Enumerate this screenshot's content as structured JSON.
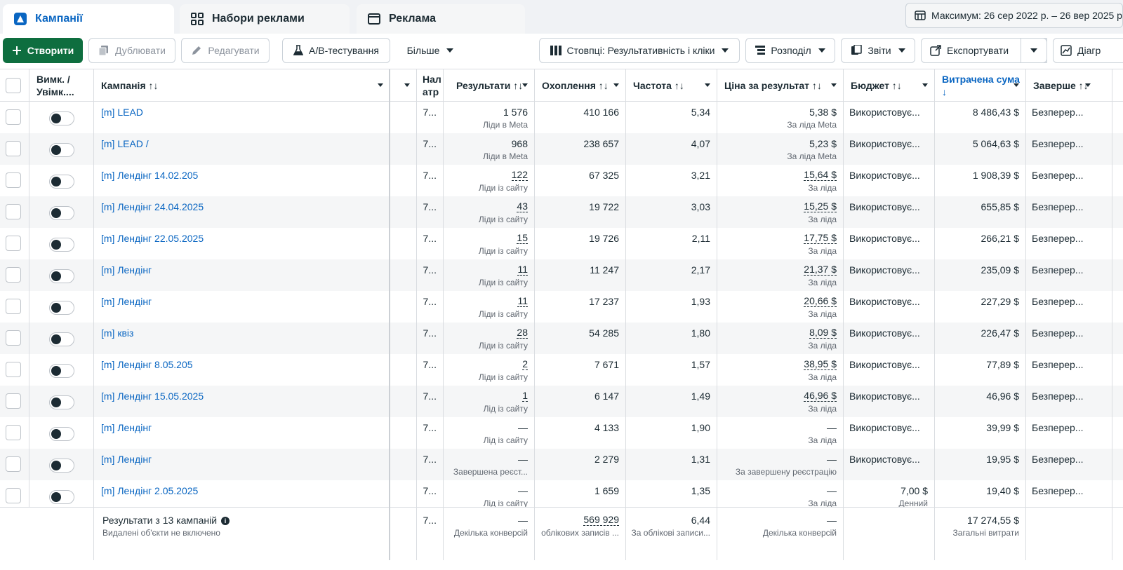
{
  "tabs": [
    {
      "label": "Кампанії",
      "icon": "campaign-flag-icon",
      "active": true
    },
    {
      "label": "Набори реклами",
      "icon": "grid-icon",
      "active": false
    },
    {
      "label": "Реклама",
      "icon": "window-icon",
      "active": false
    }
  ],
  "date_range": "Максимум: 26 сер 2022 р. – 26 вер 2025 р.",
  "toolbar": {
    "create": "Створити",
    "duplicate": "Дублювати",
    "edit": "Редагувати",
    "ab_test": "A/B-тестування",
    "more": "Більше",
    "columns": "Стовпці: Результативність і кліки",
    "breakdown": "Розподіл",
    "reports": "Звіти",
    "export": "Експортувати",
    "charts": "Діагр"
  },
  "headers": {
    "toggle": "Вимк. / Увімк....",
    "campaign": "Кампанія ↑↓",
    "attribution": "Нал атр",
    "results": "Результати ↑↓",
    "reach": "Охоплення ↑↓",
    "frequency": "Частота ↑↓",
    "cost_per_result": "Ціна за результат ↑↓",
    "budget": "Бюджет ↑↓",
    "amount_spent": "Витрачена сума ↓",
    "ends": "Заверше ↑↓"
  },
  "rows": [
    {
      "name": "[m] LEAD",
      "attr": "7...",
      "results": "1 576",
      "results_sub": "Ліди в Meta",
      "results_dotted": false,
      "reach": "410 166",
      "frequency": "5,34",
      "cpr": "5,38 $",
      "cpr_sub": "За ліда Meta",
      "cpr_dotted": false,
      "budget": "Використовує...",
      "budget_sub": "",
      "spent": "8 486,43 $",
      "ends": "Безперер..."
    },
    {
      "name": "[m] LEAD /",
      "attr": "7...",
      "results": "968",
      "results_sub": "Ліди в Meta",
      "results_dotted": false,
      "reach": "238 657",
      "frequency": "4,07",
      "cpr": "5,23 $",
      "cpr_sub": "За ліда Meta",
      "cpr_dotted": false,
      "budget": "Використовує...",
      "budget_sub": "",
      "spent": "5 064,63 $",
      "ends": "Безперер..."
    },
    {
      "name": "[m] Лендінг 14.02.205",
      "attr": "7...",
      "results": "122",
      "results_sub": "Ліди із сайту",
      "results_dotted": true,
      "reach": "67 325",
      "frequency": "3,21",
      "cpr": "15,64 $",
      "cpr_sub": "За ліда",
      "cpr_dotted": true,
      "budget": "Використовує...",
      "budget_sub": "",
      "spent": "1 908,39 $",
      "ends": "Безперер..."
    },
    {
      "name": "[m] Лендінг 24.04.2025",
      "attr": "7...",
      "results": "43",
      "results_sub": "Ліди із сайту",
      "results_dotted": true,
      "reach": "19 722",
      "frequency": "3,03",
      "cpr": "15,25 $",
      "cpr_sub": "За ліда",
      "cpr_dotted": true,
      "budget": "Використовує...",
      "budget_sub": "",
      "spent": "655,85 $",
      "ends": "Безперер..."
    },
    {
      "name": "[m] Лендінг 22.05.2025",
      "attr": "7...",
      "results": "15",
      "results_sub": "Ліди із сайту",
      "results_dotted": true,
      "reach": "19 726",
      "frequency": "2,11",
      "cpr": "17,75 $",
      "cpr_sub": "За ліда",
      "cpr_dotted": true,
      "budget": "Використовує...",
      "budget_sub": "",
      "spent": "266,21 $",
      "ends": "Безперер..."
    },
    {
      "name": "[m] Лендінг",
      "attr": "7...",
      "results": "11",
      "results_sub": "Ліди із сайту",
      "results_dotted": true,
      "reach": "11 247",
      "frequency": "2,17",
      "cpr": "21,37 $",
      "cpr_sub": "За ліда",
      "cpr_dotted": true,
      "budget": "Використовує...",
      "budget_sub": "",
      "spent": "235,09 $",
      "ends": "Безперер..."
    },
    {
      "name": "[m] Лендінг",
      "attr": "7...",
      "results": "11",
      "results_sub": "Ліди із сайту",
      "results_dotted": true,
      "reach": "17 237",
      "frequency": "1,93",
      "cpr": "20,66 $",
      "cpr_sub": "За ліда",
      "cpr_dotted": true,
      "budget": "Використовує...",
      "budget_sub": "",
      "spent": "227,29 $",
      "ends": "Безперер..."
    },
    {
      "name": "[m] квіз",
      "attr": "7...",
      "results": "28",
      "results_sub": "Ліди із сайту",
      "results_dotted": true,
      "reach": "54 285",
      "frequency": "1,80",
      "cpr": "8,09 $",
      "cpr_sub": "За ліда",
      "cpr_dotted": true,
      "budget": "Використовує...",
      "budget_sub": "",
      "spent": "226,47 $",
      "ends": "Безперер..."
    },
    {
      "name": "[m] Лендінг 8.05.205",
      "attr": "7...",
      "results": "2",
      "results_sub": "Ліди із сайту",
      "results_dotted": true,
      "reach": "7 671",
      "frequency": "1,57",
      "cpr": "38,95 $",
      "cpr_sub": "За ліда",
      "cpr_dotted": true,
      "budget": "Використовує...",
      "budget_sub": "",
      "spent": "77,89 $",
      "ends": "Безперер..."
    },
    {
      "name": "[m] Лендінг 15.05.2025",
      "attr": "7...",
      "results": "1",
      "results_sub": "Лід із сайту",
      "results_dotted": true,
      "reach": "6 147",
      "frequency": "1,49",
      "cpr": "46,96 $",
      "cpr_sub": "За ліда",
      "cpr_dotted": true,
      "budget": "Використовує...",
      "budget_sub": "",
      "spent": "46,96 $",
      "ends": "Безперер..."
    },
    {
      "name": "[m] Лендінг",
      "attr": "7...",
      "results": "—",
      "results_sub": "Лід із сайту",
      "results_dotted": false,
      "reach": "4 133",
      "frequency": "1,90",
      "cpr": "—",
      "cpr_sub": "За ліда",
      "cpr_dotted": false,
      "budget": "Використовує...",
      "budget_sub": "",
      "spent": "39,99 $",
      "ends": "Безперер..."
    },
    {
      "name": "[m] Лендінг",
      "attr": "7...",
      "results": "—",
      "results_sub": "Завершена реєст...",
      "results_dotted": false,
      "reach": "2 279",
      "frequency": "1,31",
      "cpr": "—",
      "cpr_sub": "За завершену реєстрацію",
      "cpr_dotted": false,
      "budget": "Використовує...",
      "budget_sub": "",
      "spent": "19,95 $",
      "ends": "Безперер..."
    },
    {
      "name": "[m] Лендінг 2.05.2025",
      "attr": "7...",
      "results": "—",
      "results_sub": "Лід із сайту",
      "results_dotted": false,
      "reach": "1 659",
      "frequency": "1,35",
      "cpr": "—",
      "cpr_sub": "За ліда",
      "cpr_dotted": false,
      "budget": "7,00 $",
      "budget_sub": "Денний",
      "spent": "19,40 $",
      "ends": "Безперер..."
    }
  ],
  "summary": {
    "title": "Результати з 13 кампаній",
    "note": "Видалені об'єкти не включено",
    "attr": "7...",
    "results": "—",
    "results_sub": "Декілька конверсій",
    "reach": "569 929",
    "reach_sub": "облікових записів ...",
    "frequency": "6,44",
    "frequency_sub": "За облікові записи...",
    "cpr": "—",
    "cpr_sub": "Декілька конверсій",
    "spent": "17 274,55 $",
    "spent_sub": "Загальні витрати"
  },
  "colors": {
    "accent": "#0a66c2",
    "create_button": "#0e6e3f",
    "row_alt": "#f5f6f7"
  }
}
